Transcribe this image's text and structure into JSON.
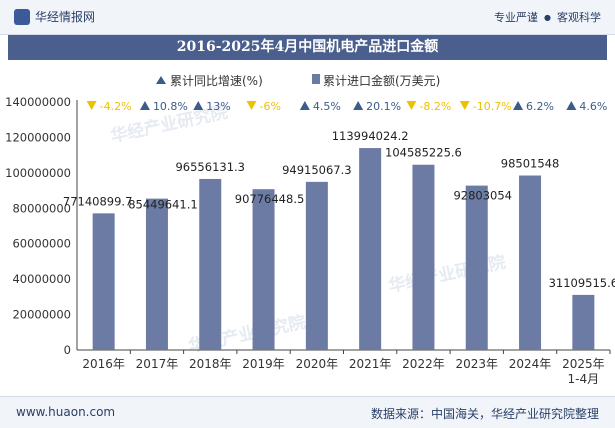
{
  "header": {
    "brand": "华经情报网",
    "links": [
      "专业严谨",
      "客观科学"
    ],
    "separator": "●"
  },
  "title": "2016-2025年4月中国机电产品进口金额",
  "footer": {
    "website": "www.huaon.com",
    "source": "数据来源：中国海关，华经产业研究院整理"
  },
  "watermark": "华经产业研究院",
  "colors": {
    "bar": "#6b7ba3",
    "up": "#3d5c8a",
    "down": "#f0c000",
    "title_bg": "#4a5f8e"
  },
  "chart_data": {
    "type": "bar",
    "title": "2016-2025年4月中国机电产品进口金额",
    "categories": [
      "2016年",
      "2017年",
      "2018年",
      "2019年",
      "2020年",
      "2021年",
      "2022年",
      "2023年",
      "2024年",
      "2025年\n1-4月"
    ],
    "legend": {
      "growth": "累计同比增速(%)",
      "amount": "累计进口金额(万美元)",
      "placement": "top-center"
    },
    "series": [
      {
        "name": "累计进口金额(万美元)",
        "values": [
          77140899.7,
          85449641.1,
          96556131.3,
          90776448.5,
          94915067.3,
          113994024.2,
          104585225.6,
          92803054,
          98501548,
          31109515.6
        ],
        "labels": [
          "77140899.7",
          "85449641.1",
          "96556131.3",
          "90776448.5",
          "94915067.3",
          "113994024.2",
          "104585225.6",
          "92803054",
          "98501548",
          "31109515.6"
        ]
      },
      {
        "name": "累计同比增速(%)",
        "values": [
          -4.2,
          10.8,
          13,
          -6,
          4.5,
          20.1,
          -8.2,
          -10.7,
          6.2,
          4.6
        ],
        "labels": [
          "-4.2%",
          "10.8%",
          "13%",
          "-6%",
          "4.5%",
          "20.1%",
          "-8.2%",
          "-10.7%",
          "6.2%",
          "4.6%"
        ]
      }
    ],
    "ylim": [
      0,
      140000000
    ],
    "yticks": [
      0,
      20000000,
      40000000,
      60000000,
      80000000,
      100000000,
      120000000,
      140000000
    ],
    "ytick_labels": [
      "0",
      "20000000",
      "40000000",
      "60000000",
      "80000000",
      "100000000",
      "120000000",
      "140000000"
    ],
    "xlabel": "",
    "ylabel": "",
    "grid": false
  }
}
